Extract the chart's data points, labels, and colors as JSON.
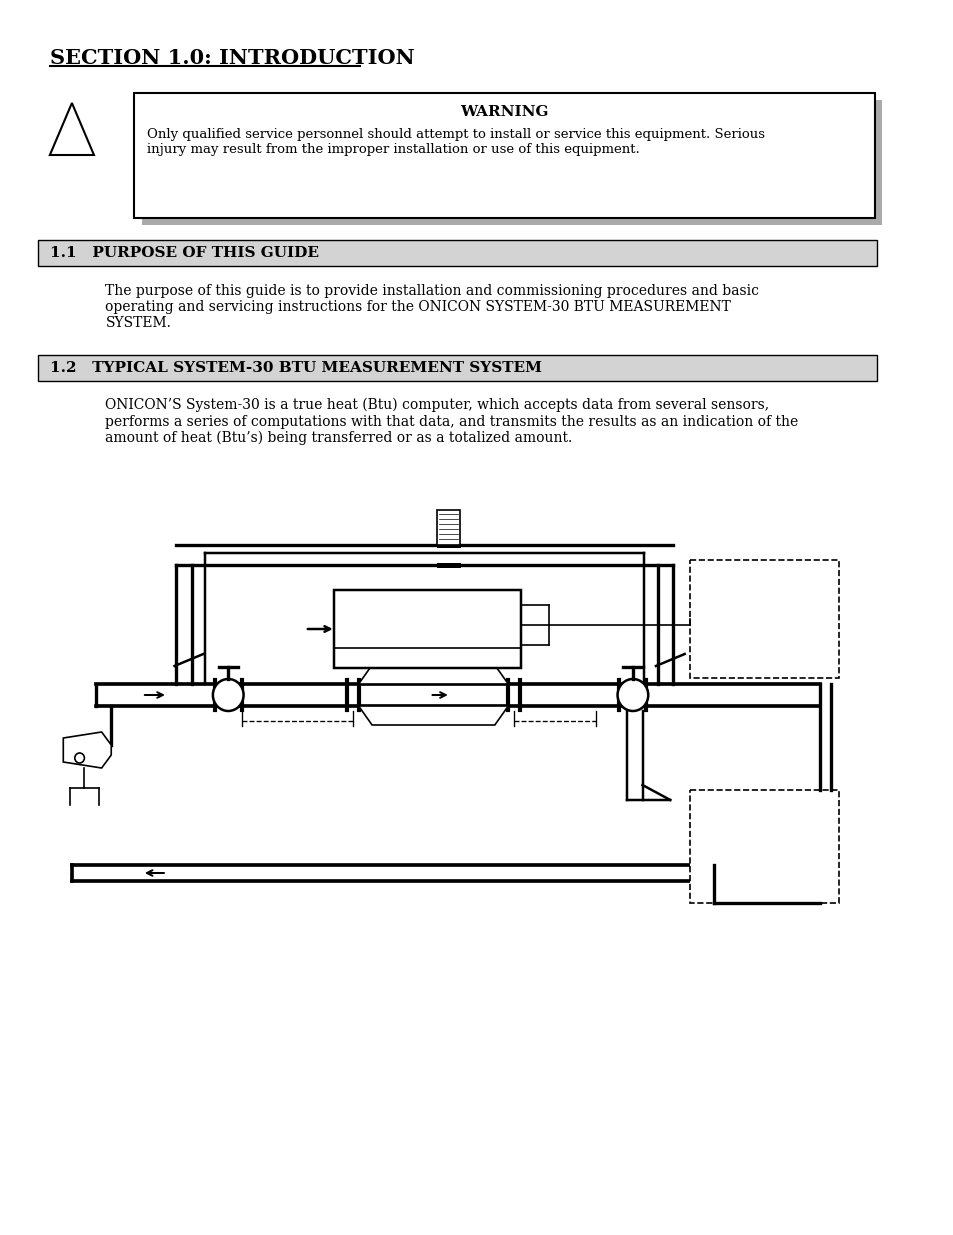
{
  "bg_color": "#ffffff",
  "page_width": 9.54,
  "page_height": 12.35,
  "title": "SECTION 1.0: INTRODUCTION",
  "warning_title": "WARNING",
  "warning_text": "Only qualified service personnel should attempt to install or service this equipment. Serious\ninjury may result from the improper installation or use of this equipment.",
  "section11_title": "1.1   PURPOSE OF THIS GUIDE",
  "section11_text": "The purpose of this guide is to provide installation and commissioning procedures and basic\noperating and servicing instructions for the ONICON SYSTEM-30 BTU MEASUREMENT\nSYSTEM.",
  "section12_title": "1.2   TYPICAL SYSTEM-30 BTU MEASUREMENT SYSTEM",
  "section12_text": "ONICON’S System-30 is a true heat (Btu) computer, which accepts data from several sensors,\nperforms a series of computations with that data, and transmits the results as an indication of the\namount of heat (Btu’s) being transferred or as a totalized amount.",
  "header_bg": "#d3d3d3",
  "header_border": "#000000",
  "warning_border": "#000000",
  "shadow_color": "#aaaaaa"
}
